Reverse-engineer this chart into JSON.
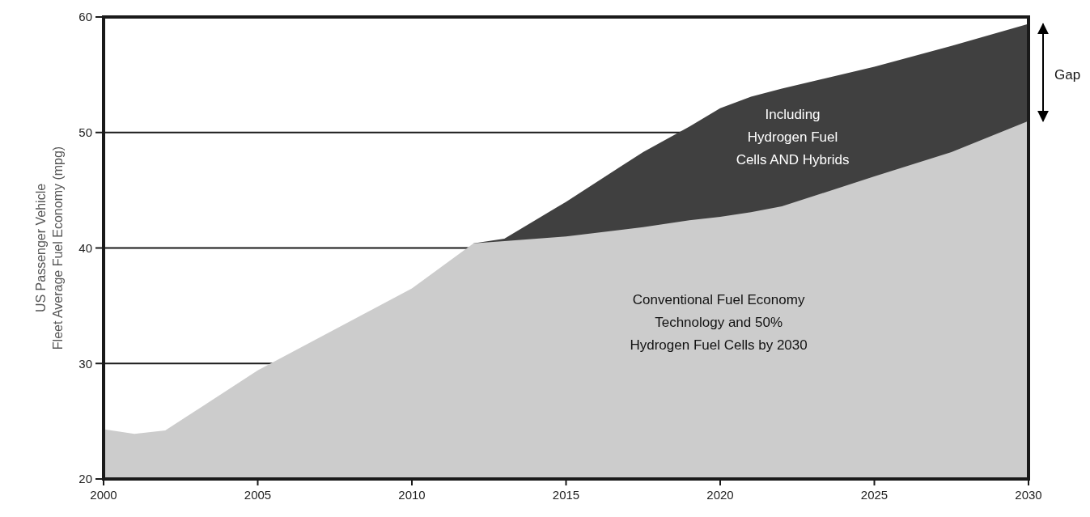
{
  "chart_data": {
    "type": "area",
    "ylabel": "US Passenger Vehicle\nFleet Average Fuel Economy (mpg)",
    "x": [
      2000,
      2001,
      2002,
      2005,
      2010,
      2012,
      2013,
      2015,
      2017.5,
      2019,
      2020,
      2021,
      2022,
      2025,
      2027.5,
      2030
    ],
    "series": [
      {
        "color": "#404040",
        "values": [
          null,
          null,
          null,
          null,
          null,
          40.4,
          40.8,
          44.0,
          48.3,
          50.5,
          52.1,
          53.1,
          53.8,
          55.7,
          57.5,
          59.4
        ]
      },
      {
        "color": "#cccccc",
        "values": [
          24.3,
          23.9,
          24.2,
          29.4,
          36.5,
          40.4,
          40.6,
          41.0,
          41.8,
          42.4,
          42.7,
          43.1,
          43.6,
          46.2,
          48.3,
          51.0
        ]
      }
    ],
    "xlim": [
      2000,
      2030
    ],
    "xticks": [
      2000,
      2005,
      2010,
      2015,
      2020,
      2025,
      2030
    ],
    "ylim": [
      20,
      60
    ],
    "yticks": [
      20,
      30,
      40,
      50,
      60
    ],
    "grid": "y",
    "annotations": [
      "Conventional Fuel Economy\nTechnology and 50%\nHydrogen Fuel Cells by 2030",
      "Including\nHydrogen Fuel\nCells AND Hybrids",
      {
        "text": "Gap",
        "x": 2030,
        "y": 55
      }
    ]
  }
}
